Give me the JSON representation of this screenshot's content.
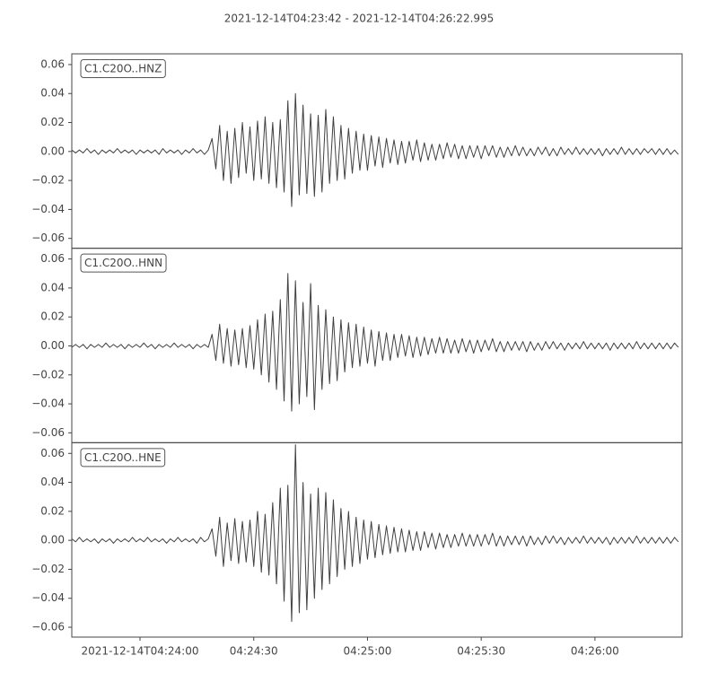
{
  "chart_data": {
    "type": "line",
    "title": "2021-12-14T04:23:42  -  2021-12-14T04:26:22.995",
    "x": [
      0,
      1,
      2,
      3,
      4,
      5,
      6,
      7,
      8,
      9,
      10,
      11,
      12,
      13,
      14,
      15,
      16,
      17,
      18,
      19,
      20,
      21,
      22,
      23,
      24,
      25,
      26,
      27,
      28,
      29,
      30,
      31,
      32,
      33,
      34,
      35,
      36,
      37,
      38,
      39,
      40,
      41,
      42,
      43,
      44,
      45,
      46,
      47,
      48,
      49,
      50,
      51,
      52,
      53,
      54,
      55,
      56,
      57,
      58,
      59,
      60,
      61,
      62,
      63,
      64,
      65,
      66,
      67,
      68,
      69,
      70,
      71,
      72,
      73,
      74,
      75,
      76,
      77,
      78,
      79,
      80,
      81,
      82,
      83,
      84,
      85,
      86,
      87,
      88,
      89,
      90,
      91,
      92,
      93,
      94,
      95,
      96,
      97,
      98,
      99,
      100,
      101,
      102,
      103,
      104,
      105,
      106,
      107,
      108,
      109,
      110,
      111,
      112,
      113,
      114,
      115,
      116,
      117,
      118,
      119,
      120,
      121,
      122,
      123,
      124,
      125,
      126,
      127,
      128,
      129,
      130,
      131,
      132,
      133,
      134,
      135,
      136,
      137,
      138,
      139,
      140,
      141,
      142,
      143,
      144,
      145,
      146,
      147,
      148,
      149,
      150,
      151,
      152,
      153,
      154,
      155,
      156,
      157,
      158,
      159,
      160
    ],
    "xlim": [
      0,
      160.995
    ],
    "xticks": [
      {
        "value": 18,
        "label": "2021-12-14T04:24:00"
      },
      {
        "value": 48,
        "label": "04:24:30"
      },
      {
        "value": 78,
        "label": "04:25:00"
      },
      {
        "value": 108,
        "label": "04:25:30"
      },
      {
        "value": 138,
        "label": "04:26:00"
      }
    ],
    "ylim": [
      -0.0668,
      0.0674
    ],
    "yticks": [
      {
        "value": -0.06,
        "label": "−0.06"
      },
      {
        "value": -0.04,
        "label": "−0.04"
      },
      {
        "value": -0.02,
        "label": "−0.02"
      },
      {
        "value": 0,
        "label": "0.00"
      },
      {
        "value": 0.02,
        "label": "0.02"
      },
      {
        "value": 0.04,
        "label": "0.04"
      },
      {
        "value": 0.06,
        "label": "0.06"
      }
    ],
    "series": [
      {
        "name": "C1.C20O..HNZ",
        "color": "#404040",
        "values": [
          0.001,
          -0.001,
          0.001,
          -0.001,
          0.002,
          -0.001,
          0.001,
          -0.002,
          0.001,
          -0.001,
          0.001,
          -0.001,
          0.002,
          -0.001,
          0.001,
          -0.001,
          0.001,
          -0.002,
          0.001,
          -0.001,
          0.001,
          -0.001,
          0.001,
          -0.002,
          0.002,
          -0.001,
          0.001,
          -0.001,
          0.001,
          -0.002,
          0.001,
          -0.001,
          0.002,
          -0.001,
          0.001,
          -0.002,
          0.001,
          0.009,
          -0.012,
          0.018,
          -0.02,
          0.014,
          -0.022,
          0.016,
          -0.018,
          0.02,
          -0.015,
          0.017,
          -0.02,
          0.021,
          -0.019,
          0.024,
          -0.022,
          0.02,
          -0.025,
          0.022,
          -0.028,
          0.035,
          -0.038,
          0.04,
          -0.03,
          0.032,
          -0.029,
          0.026,
          -0.031,
          0.025,
          -0.028,
          0.029,
          -0.022,
          0.024,
          -0.02,
          0.018,
          -0.019,
          0.016,
          -0.015,
          0.014,
          -0.013,
          0.012,
          -0.013,
          0.011,
          -0.01,
          0.01,
          -0.011,
          0.009,
          -0.008,
          0.008,
          -0.009,
          0.007,
          -0.008,
          0.007,
          -0.006,
          0.008,
          -0.007,
          0.006,
          -0.006,
          0.005,
          -0.006,
          0.005,
          -0.005,
          0.006,
          -0.004,
          0.005,
          -0.005,
          0.004,
          -0.005,
          0.004,
          -0.004,
          0.004,
          -0.005,
          0.004,
          -0.003,
          0.004,
          -0.004,
          0.003,
          -0.004,
          0.003,
          -0.003,
          0.004,
          -0.003,
          0.003,
          -0.003,
          0.002,
          -0.003,
          0.003,
          -0.002,
          0.003,
          -0.003,
          0.002,
          -0.003,
          0.003,
          -0.002,
          0.002,
          -0.002,
          0.003,
          -0.002,
          0.002,
          -0.002,
          0.002,
          -0.002,
          0.002,
          -0.003,
          0.002,
          -0.002,
          0.002,
          -0.002,
          0.003,
          -0.002,
          0.002,
          -0.002,
          0.002,
          -0.002,
          0.002,
          -0.001,
          0.002,
          -0.002,
          0.002,
          -0.002,
          0.002,
          -0.002,
          0.001,
          -0.002
        ]
      },
      {
        "name": "C1.C20O..HNN",
        "color": "#404040",
        "values": [
          -0.001,
          0.001,
          -0.001,
          0.001,
          -0.002,
          0.001,
          -0.001,
          0.001,
          -0.001,
          0.002,
          -0.001,
          0.001,
          -0.001,
          0.001,
          -0.002,
          0.001,
          -0.001,
          0.001,
          -0.001,
          0.002,
          -0.001,
          0.001,
          -0.002,
          0.001,
          -0.001,
          0.001,
          -0.001,
          0.002,
          -0.001,
          0.001,
          -0.001,
          0.001,
          -0.002,
          0.001,
          -0.001,
          0.001,
          -0.001,
          0.008,
          -0.01,
          0.015,
          -0.012,
          0.012,
          -0.014,
          0.011,
          -0.013,
          0.012,
          -0.015,
          0.014,
          -0.016,
          0.018,
          -0.02,
          0.022,
          -0.025,
          0.024,
          -0.03,
          0.032,
          -0.038,
          0.05,
          -0.045,
          0.045,
          -0.04,
          0.03,
          -0.035,
          0.043,
          -0.044,
          0.028,
          -0.03,
          0.025,
          -0.026,
          0.02,
          -0.024,
          0.018,
          -0.018,
          0.016,
          -0.015,
          0.015,
          -0.014,
          0.013,
          -0.012,
          0.011,
          -0.014,
          0.01,
          -0.01,
          0.009,
          -0.01,
          0.008,
          -0.008,
          0.008,
          -0.007,
          0.007,
          -0.008,
          0.006,
          -0.007,
          0.006,
          -0.006,
          0.005,
          -0.005,
          0.006,
          -0.005,
          0.005,
          -0.005,
          0.004,
          -0.005,
          0.005,
          -0.004,
          0.004,
          -0.005,
          0.004,
          -0.004,
          0.004,
          -0.003,
          0.005,
          -0.004,
          0.003,
          -0.004,
          0.003,
          -0.003,
          0.003,
          -0.003,
          0.003,
          -0.004,
          0.003,
          -0.003,
          0.002,
          -0.003,
          0.003,
          -0.002,
          0.003,
          -0.002,
          0.002,
          -0.003,
          0.002,
          -0.002,
          0.002,
          -0.002,
          0.003,
          -0.002,
          0.002,
          -0.002,
          0.002,
          -0.002,
          0.002,
          -0.003,
          0.002,
          -0.002,
          0.002,
          -0.002,
          0.002,
          -0.002,
          0.003,
          -0.002,
          0.002,
          -0.002,
          0.002,
          -0.002,
          0.002,
          -0.002,
          0.002,
          -0.002,
          0.002,
          -0.001
        ]
      },
      {
        "name": "C1.C20O..HNE",
        "color": "#404040",
        "values": [
          0.001,
          -0.001,
          0.002,
          -0.001,
          0.001,
          -0.001,
          0.001,
          -0.002,
          0.001,
          -0.001,
          0.001,
          -0.002,
          0.001,
          -0.001,
          0.001,
          -0.001,
          0.002,
          -0.001,
          0.001,
          -0.001,
          0.002,
          -0.001,
          0.001,
          -0.001,
          0.001,
          -0.002,
          0.001,
          -0.001,
          0.002,
          -0.001,
          0.001,
          -0.001,
          0.001,
          -0.002,
          0.002,
          -0.001,
          0.001,
          0.008,
          -0.011,
          0.016,
          -0.018,
          0.012,
          -0.014,
          0.015,
          -0.016,
          0.013,
          -0.015,
          0.014,
          -0.018,
          0.02,
          -0.022,
          0.018,
          -0.024,
          0.026,
          -0.03,
          0.036,
          -0.042,
          0.038,
          -0.056,
          0.066,
          -0.05,
          0.04,
          -0.048,
          0.032,
          -0.04,
          0.036,
          -0.034,
          0.033,
          -0.03,
          0.028,
          -0.025,
          0.022,
          -0.02,
          0.02,
          -0.018,
          0.016,
          -0.016,
          0.014,
          -0.013,
          0.013,
          -0.012,
          0.011,
          -0.01,
          0.01,
          -0.009,
          0.009,
          -0.008,
          0.008,
          -0.008,
          0.007,
          -0.007,
          0.006,
          -0.007,
          0.006,
          -0.005,
          0.005,
          -0.006,
          0.005,
          -0.005,
          0.004,
          -0.005,
          0.004,
          -0.004,
          0.005,
          -0.004,
          0.004,
          -0.004,
          0.004,
          -0.004,
          0.004,
          -0.003,
          0.005,
          -0.004,
          0.003,
          -0.004,
          0.003,
          -0.003,
          0.003,
          -0.003,
          0.003,
          -0.004,
          0.003,
          -0.003,
          0.002,
          -0.003,
          0.003,
          -0.002,
          0.003,
          -0.002,
          0.002,
          -0.003,
          0.002,
          -0.002,
          0.002,
          -0.002,
          0.003,
          -0.002,
          0.002,
          -0.002,
          0.002,
          -0.002,
          0.002,
          -0.003,
          0.002,
          -0.002,
          0.002,
          -0.002,
          0.002,
          -0.002,
          0.003,
          -0.002,
          0.002,
          -0.002,
          0.002,
          -0.002,
          0.002,
          -0.002,
          0.002,
          -0.002,
          0.002,
          -0.001
        ]
      }
    ]
  }
}
